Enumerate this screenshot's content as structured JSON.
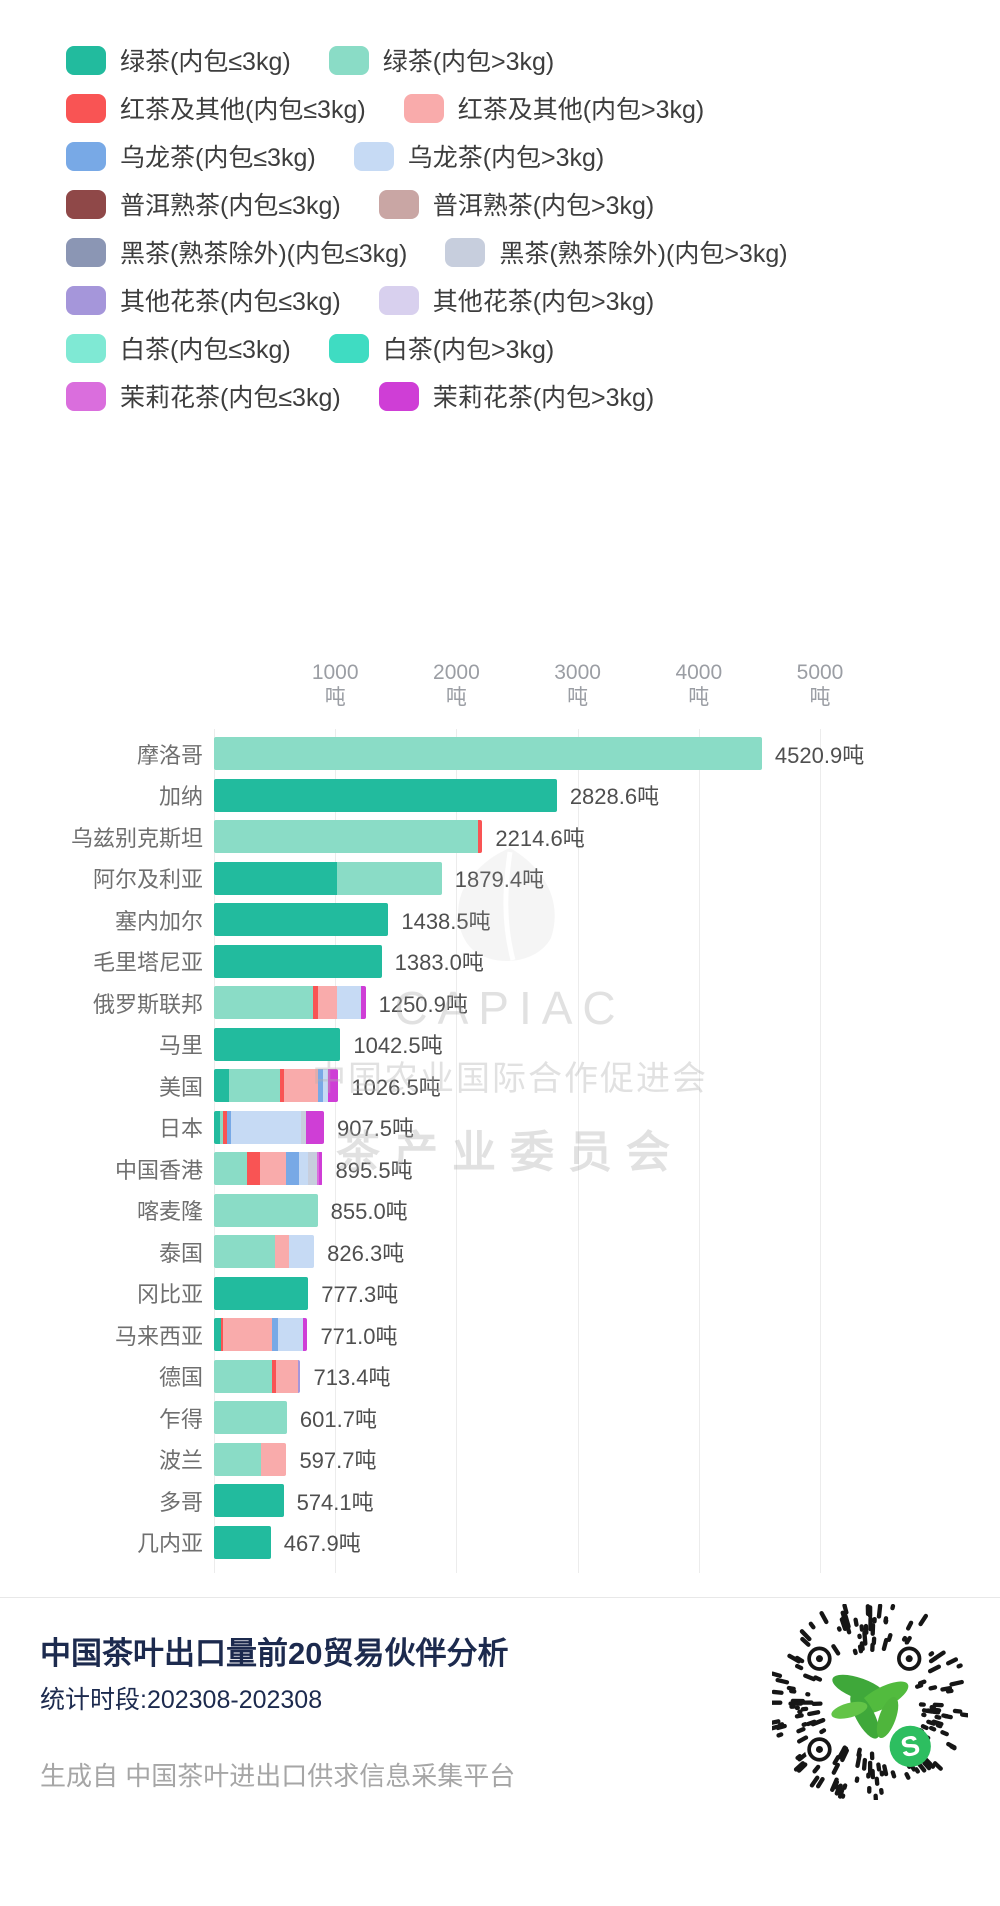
{
  "legend": {
    "items": [
      {
        "key": "green_le",
        "label": "绿茶(内包≤3kg)",
        "color": "#22bb9e"
      },
      {
        "key": "green_gt",
        "label": "绿茶(内包>3kg)",
        "color": "#8adcc6"
      },
      {
        "key": "red_le",
        "label": "红茶及其他(内包≤3kg)",
        "color": "#f95454"
      },
      {
        "key": "red_gt",
        "label": "红茶及其他(内包>3kg)",
        "color": "#f9abab"
      },
      {
        "key": "oolong_le",
        "label": "乌龙茶(内包≤3kg)",
        "color": "#78a9e6"
      },
      {
        "key": "oolong_gt",
        "label": "乌龙茶(内包>3kg)",
        "color": "#c6daf4"
      },
      {
        "key": "puer_le",
        "label": "普洱熟茶(内包≤3kg)",
        "color": "#8f4848"
      },
      {
        "key": "puer_gt",
        "label": "普洱熟茶(内包>3kg)",
        "color": "#c9a6a4"
      },
      {
        "key": "dark_le",
        "label": "黑茶(熟茶除外)(内包≤3kg)",
        "color": "#8b96b4"
      },
      {
        "key": "dark_gt",
        "label": "黑茶(熟茶除外)(内包>3kg)",
        "color": "#c7cedd"
      },
      {
        "key": "floral_le",
        "label": "其他花茶(内包≤3kg)",
        "color": "#a596da"
      },
      {
        "key": "floral_gt",
        "label": "其他花茶(内包>3kg)",
        "color": "#d8d0ee"
      },
      {
        "key": "white_le",
        "label": "白茶(内包≤3kg)",
        "color": "#7fe9d4"
      },
      {
        "key": "white_gt",
        "label": "白茶(内包>3kg)",
        "color": "#3fdcc2"
      },
      {
        "key": "jasmine_le",
        "label": "茉莉花茶(内包≤3kg)",
        "color": "#da6edd"
      },
      {
        "key": "jasmine_gt",
        "label": "茉莉花茶(内包>3kg)",
        "color": "#cf3ed6"
      }
    ]
  },
  "chart_data": {
    "type": "bar",
    "orientation": "horizontal",
    "stacked": true,
    "unit": "吨",
    "xlim": [
      0,
      5000
    ],
    "ticks": [
      "1000",
      "2000",
      "3000",
      "4000",
      "5000"
    ],
    "tick_unit": "吨",
    "rows": [
      {
        "country": "摩洛哥",
        "total": 4520.9,
        "value_label": "4520.9吨",
        "segments": [
          [
            "green_gt",
            1
          ]
        ]
      },
      {
        "country": "加纳",
        "total": 2828.6,
        "value_label": "2828.6吨",
        "segments": [
          [
            "green_le",
            1
          ]
        ]
      },
      {
        "country": "乌兹别克斯坦",
        "total": 2214.6,
        "value_label": "2214.6吨",
        "segments": [
          [
            "green_gt",
            0.985
          ],
          [
            "red_le",
            0.015
          ]
        ]
      },
      {
        "country": "阿尔及利亚",
        "total": 1879.4,
        "value_label": "1879.4吨",
        "segments": [
          [
            "green_le",
            0.54
          ],
          [
            "green_gt",
            0.46
          ]
        ]
      },
      {
        "country": "塞内加尔",
        "total": 1438.5,
        "value_label": "1438.5吨",
        "segments": [
          [
            "green_le",
            1
          ]
        ]
      },
      {
        "country": "毛里塔尼亚",
        "total": 1383.0,
        "value_label": "1383.0吨",
        "segments": [
          [
            "green_le",
            1
          ]
        ]
      },
      {
        "country": "俄罗斯联邦",
        "total": 1250.9,
        "value_label": "1250.9吨",
        "segments": [
          [
            "green_gt",
            0.655
          ],
          [
            "red_le",
            0.03
          ],
          [
            "red_gt",
            0.125
          ],
          [
            "oolong_gt",
            0.16
          ],
          [
            "jasmine_gt",
            0.03
          ]
        ]
      },
      {
        "country": "马里",
        "total": 1042.5,
        "value_label": "1042.5吨",
        "segments": [
          [
            "green_le",
            1
          ]
        ]
      },
      {
        "country": "美国",
        "total": 1026.5,
        "value_label": "1026.5吨",
        "segments": [
          [
            "green_le",
            0.12
          ],
          [
            "green_gt",
            0.41
          ],
          [
            "red_le",
            0.035
          ],
          [
            "red_gt",
            0.27
          ],
          [
            "oolong_le",
            0.04
          ],
          [
            "oolong_gt",
            0.04
          ],
          [
            "jasmine_gt",
            0.085
          ]
        ]
      },
      {
        "country": "日本",
        "total": 907.5,
        "value_label": "907.5吨",
        "segments": [
          [
            "green_le",
            0.055
          ],
          [
            "green_gt",
            0.025
          ],
          [
            "red_le",
            0.035
          ],
          [
            "oolong_le",
            0.04
          ],
          [
            "oolong_gt",
            0.64
          ],
          [
            "dark_gt",
            0.04
          ],
          [
            "jasmine_gt",
            0.165
          ]
        ]
      },
      {
        "country": "中国香港",
        "total": 895.5,
        "value_label": "895.5吨",
        "segments": [
          [
            "green_gt",
            0.3
          ],
          [
            "red_le",
            0.12
          ],
          [
            "red_gt",
            0.24
          ],
          [
            "oolong_le",
            0.12
          ],
          [
            "oolong_gt",
            0.09
          ],
          [
            "dark_gt",
            0.08
          ],
          [
            "jasmine_le",
            0.02
          ],
          [
            "jasmine_gt",
            0.03
          ]
        ]
      },
      {
        "country": "喀麦隆",
        "total": 855.0,
        "value_label": "855.0吨",
        "segments": [
          [
            "green_gt",
            1
          ]
        ]
      },
      {
        "country": "泰国",
        "total": 826.3,
        "value_label": "826.3吨",
        "segments": [
          [
            "green_gt",
            0.61
          ],
          [
            "red_gt",
            0.14
          ],
          [
            "oolong_gt",
            0.25
          ]
        ]
      },
      {
        "country": "冈比亚",
        "total": 777.3,
        "value_label": "777.3吨",
        "segments": [
          [
            "green_le",
            1
          ]
        ]
      },
      {
        "country": "马来西亚",
        "total": 771.0,
        "value_label": "771.0吨",
        "segments": [
          [
            "green_le",
            0.07
          ],
          [
            "red_le",
            0.03
          ],
          [
            "red_gt",
            0.52
          ],
          [
            "oolong_le",
            0.06
          ],
          [
            "oolong_gt",
            0.27
          ],
          [
            "jasmine_gt",
            0.05
          ]
        ]
      },
      {
        "country": "德国",
        "total": 713.4,
        "value_label": "713.4吨",
        "segments": [
          [
            "green_gt",
            0.67
          ],
          [
            "red_le",
            0.05
          ],
          [
            "red_gt",
            0.25
          ],
          [
            "floral_le",
            0.03
          ]
        ]
      },
      {
        "country": "乍得",
        "total": 601.7,
        "value_label": "601.7吨",
        "segments": [
          [
            "green_gt",
            1
          ]
        ]
      },
      {
        "country": "波兰",
        "total": 597.7,
        "value_label": "597.7吨",
        "segments": [
          [
            "green_gt",
            0.65
          ],
          [
            "red_gt",
            0.35
          ]
        ]
      },
      {
        "country": "多哥",
        "total": 574.1,
        "value_label": "574.1吨",
        "segments": [
          [
            "green_le",
            1
          ]
        ]
      },
      {
        "country": "几内亚",
        "total": 467.9,
        "value_label": "467.9吨",
        "segments": [
          [
            "green_le",
            1
          ]
        ]
      }
    ]
  },
  "watermark": {
    "acronym": "CAPIAC",
    "org": "中国农业国际合作促进会",
    "committee": "茶产业委员会"
  },
  "footer": {
    "title": "中国茶叶出口量前20贸易伙伴分析",
    "period": "统计时段:202308-202308",
    "source": "生成自 中国茶叶进出口供求信息采集平台"
  }
}
